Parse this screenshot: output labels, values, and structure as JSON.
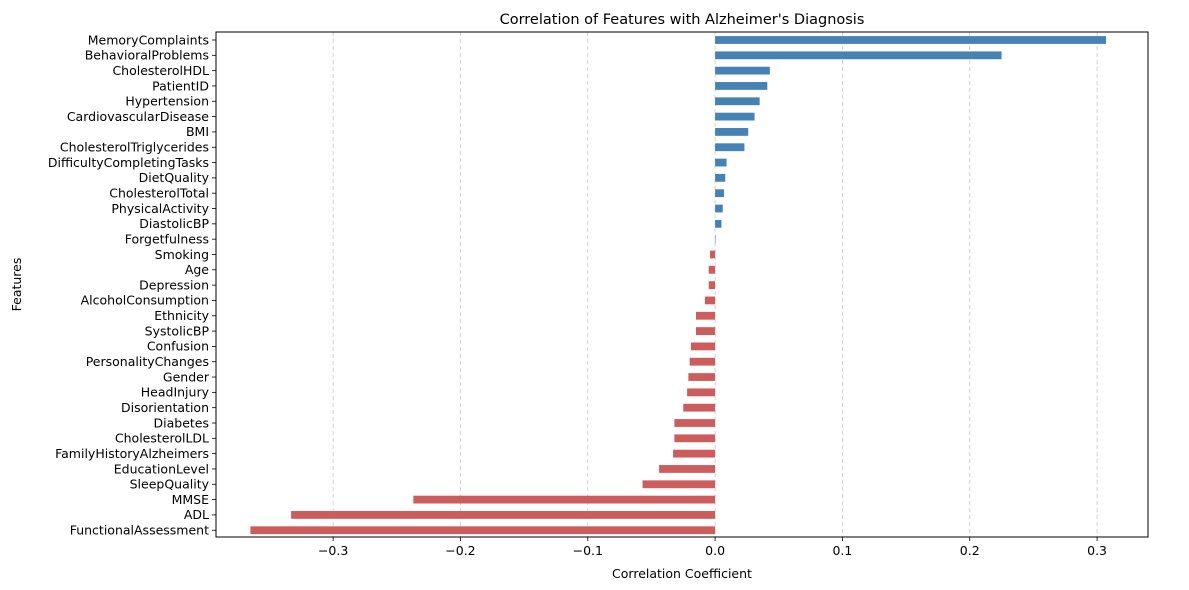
{
  "chart_data": {
    "type": "bar",
    "orientation": "horizontal",
    "title": "Correlation of Features with Alzheimer's Diagnosis",
    "xlabel": "Correlation Coefficient",
    "ylabel": "Features",
    "xlim": [
      -0.392,
      0.34
    ],
    "xticks": [
      -0.3,
      -0.2,
      -0.1,
      0.0,
      0.1,
      0.2,
      0.3
    ],
    "xtick_labels": [
      "−0.3",
      "−0.2",
      "−0.1",
      "0.0",
      "0.1",
      "0.2",
      "0.3"
    ],
    "grid": "x-axis dashed",
    "positive_color": "#4682b4",
    "negative_color": "#cd5c5c",
    "categories": [
      "MemoryComplaints",
      "BehavioralProblems",
      "CholesterolHDL",
      "PatientID",
      "Hypertension",
      "CardiovascularDisease",
      "BMI",
      "CholesterolTriglycerides",
      "DifficultyCompletingTasks",
      "DietQuality",
      "CholesterolTotal",
      "PhysicalActivity",
      "DiastolicBP",
      "Forgetfulness",
      "Smoking",
      "Age",
      "Depression",
      "AlcoholConsumption",
      "Ethnicity",
      "SystolicBP",
      "Confusion",
      "PersonalityChanges",
      "Gender",
      "HeadInjury",
      "Disorientation",
      "Diabetes",
      "CholesterolLDL",
      "FamilyHistoryAlzheimers",
      "EducationLevel",
      "SleepQuality",
      "MMSE",
      "ADL",
      "FunctionalAssessment"
    ],
    "values": [
      0.307,
      0.225,
      0.043,
      0.041,
      0.035,
      0.031,
      0.026,
      0.023,
      0.009,
      0.008,
      0.007,
      0.006,
      0.005,
      0.0004,
      -0.004,
      -0.005,
      -0.005,
      -0.008,
      -0.015,
      -0.015,
      -0.019,
      -0.02,
      -0.021,
      -0.022,
      -0.025,
      -0.032,
      -0.032,
      -0.033,
      -0.044,
      -0.057,
      -0.237,
      -0.333,
      -0.365
    ]
  }
}
